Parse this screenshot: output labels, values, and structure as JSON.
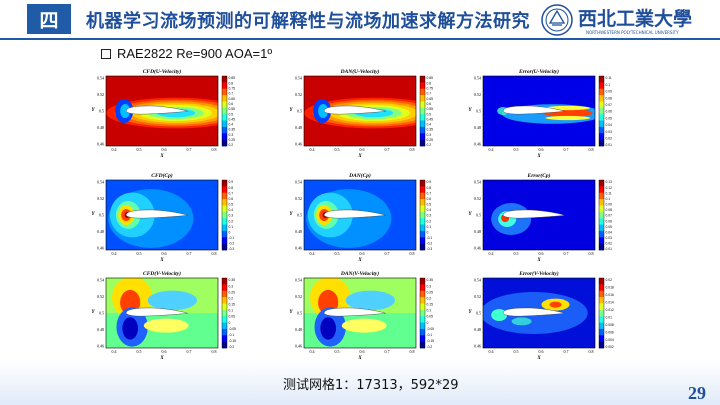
{
  "header": {
    "section_number": "四",
    "title": "机器学习流场预测的可解释性与流场加速求解方法研究",
    "logo_name": "西北工業大學",
    "logo_subtitle": "NORTHWESTERN POLYTECHNICAL UNIVERSITY"
  },
  "subtitle": "RAE2822 Re=900 AOA=1º",
  "panels": [
    {
      "title": "CFD(U-Velocity)",
      "field": "u",
      "colorbar": [
        "0.85",
        "0.8",
        "0.75",
        "0.7",
        "0.65",
        "0.6",
        "0.55",
        "0.5",
        "0.45",
        "0.4",
        "0.35",
        "0.3",
        "0.25",
        "0.2"
      ]
    },
    {
      "title": "DAN(U-Velocity)",
      "field": "u",
      "colorbar": [
        "0.85",
        "0.8",
        "0.75",
        "0.7",
        "0.65",
        "0.6",
        "0.55",
        "0.5",
        "0.45",
        "0.4",
        "0.35",
        "0.3",
        "0.25",
        "0.2"
      ]
    },
    {
      "title": "Error(U-Velocity)",
      "field": "eu",
      "colorbar": [
        "0.11",
        "0.1",
        "0.09",
        "0.08",
        "0.07",
        "0.06",
        "0.05",
        "0.04",
        "0.03",
        "0.02",
        "0.01"
      ]
    },
    {
      "title": "CFD(Cp)",
      "field": "cp",
      "colorbar": [
        "0.9",
        "0.8",
        "0.7",
        "0.6",
        "0.5",
        "0.4",
        "0.3",
        "0.2",
        "0.1",
        "0",
        "-0.1",
        "-0.2",
        "-0.3"
      ]
    },
    {
      "title": "DAN(Cp)",
      "field": "cp",
      "colorbar": [
        "0.9",
        "0.8",
        "0.7",
        "0.6",
        "0.5",
        "0.4",
        "0.3",
        "0.2",
        "0.1",
        "0",
        "-0.1",
        "-0.2",
        "-0.3"
      ]
    },
    {
      "title": "Error(Cp)",
      "field": "ecp",
      "colorbar": [
        "0.13",
        "0.12",
        "0.11",
        "0.1",
        "0.09",
        "0.08",
        "0.07",
        "0.06",
        "0.05",
        "0.04",
        "0.03",
        "0.02",
        "0.01"
      ]
    },
    {
      "title": "CFD(V-Velocity)",
      "field": "v",
      "colorbar": [
        "0.35",
        "0.3",
        "0.25",
        "0.2",
        "0.15",
        "0.1",
        "0.05",
        "0",
        "-0.05",
        "-0.1",
        "-0.15",
        "-0.2"
      ]
    },
    {
      "title": "DAN(V-Velocity)",
      "field": "v",
      "colorbar": [
        "0.35",
        "0.3",
        "0.25",
        "0.2",
        "0.15",
        "0.1",
        "0.05",
        "0",
        "-0.05",
        "-0.1",
        "-0.15",
        "-0.2"
      ]
    },
    {
      "title": "Error(V-Velocity)",
      "field": "ev",
      "colorbar": [
        "0.02",
        "0.018",
        "0.016",
        "0.014",
        "0.012",
        "0.01",
        "0.008",
        "0.006",
        "0.004",
        "0.002"
      ]
    }
  ],
  "axes": {
    "xlabel": "X",
    "ylabel": "Y",
    "xticks": [
      "0.4",
      "0.5",
      "0.6",
      "0.7",
      "0.8"
    ],
    "yticks": [
      "0.54",
      "0.52",
      "0.5",
      "0.48",
      "0.46"
    ]
  },
  "caption": "测试网格1：17313，592*29",
  "page_number": "29",
  "colors": {
    "brand_blue": "#1f5ba6",
    "title_blue": "#1f4e9a"
  }
}
